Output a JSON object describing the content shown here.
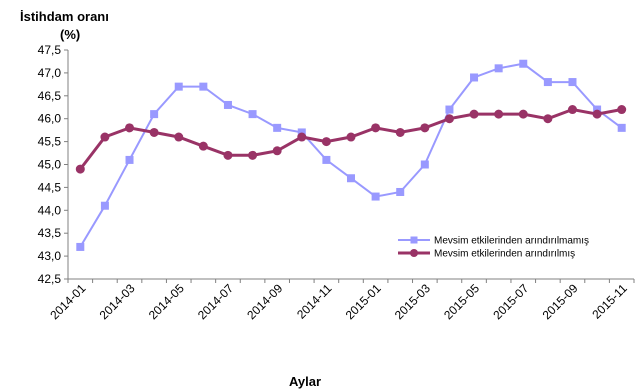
{
  "chart_data": {
    "type": "line",
    "title": "İstihdam oranı",
    "subtitle": "(%)",
    "xlabel": "Aylar",
    "ylabel": "",
    "ylim": [
      42.5,
      47.5
    ],
    "ytick_step": 0.5,
    "yticks": [
      "42,5",
      "43,0",
      "43,5",
      "44,0",
      "44,5",
      "45,0",
      "45,5",
      "46,0",
      "46,5",
      "47,0",
      "47,5"
    ],
    "categories": [
      "2014-01",
      "2014-02",
      "2014-03",
      "2014-04",
      "2014-05",
      "2014-06",
      "2014-07",
      "2014-08",
      "2014-09",
      "2014-10",
      "2014-11",
      "2014-12",
      "2015-01",
      "2015-02",
      "2015-03",
      "2015-04",
      "2015-05",
      "2015-06",
      "2015-07",
      "2015-08",
      "2015-09",
      "2015-10",
      "2015-11"
    ],
    "xtick_labels": [
      "2014-01",
      "2014-03",
      "2014-05",
      "2014-07",
      "2014-09",
      "2014-11",
      "2015-01",
      "2015-03",
      "2015-05",
      "2015-07",
      "2015-09",
      "2015-11"
    ],
    "grid": false,
    "legend_position": "bottom-right",
    "series": [
      {
        "name": "Mevsim etkilerinden arındırılmamış",
        "color": "#9999ff",
        "marker": "square",
        "values": [
          43.2,
          44.1,
          45.1,
          46.1,
          46.7,
          46.7,
          46.3,
          46.1,
          45.8,
          45.7,
          45.1,
          44.7,
          44.3,
          44.4,
          45.0,
          46.2,
          46.9,
          47.1,
          47.2,
          46.8,
          46.8,
          46.2,
          45.8
        ]
      },
      {
        "name": "Mevsim etkilerinden arındırılmış",
        "color": "#993366",
        "marker": "circle",
        "values": [
          44.9,
          45.6,
          45.8,
          45.7,
          45.6,
          45.4,
          45.2,
          45.2,
          45.3,
          45.6,
          45.5,
          45.6,
          45.8,
          45.7,
          45.8,
          46.0,
          46.1,
          46.1,
          46.1,
          46.0,
          46.2,
          46.1,
          46.2
        ]
      }
    ]
  }
}
